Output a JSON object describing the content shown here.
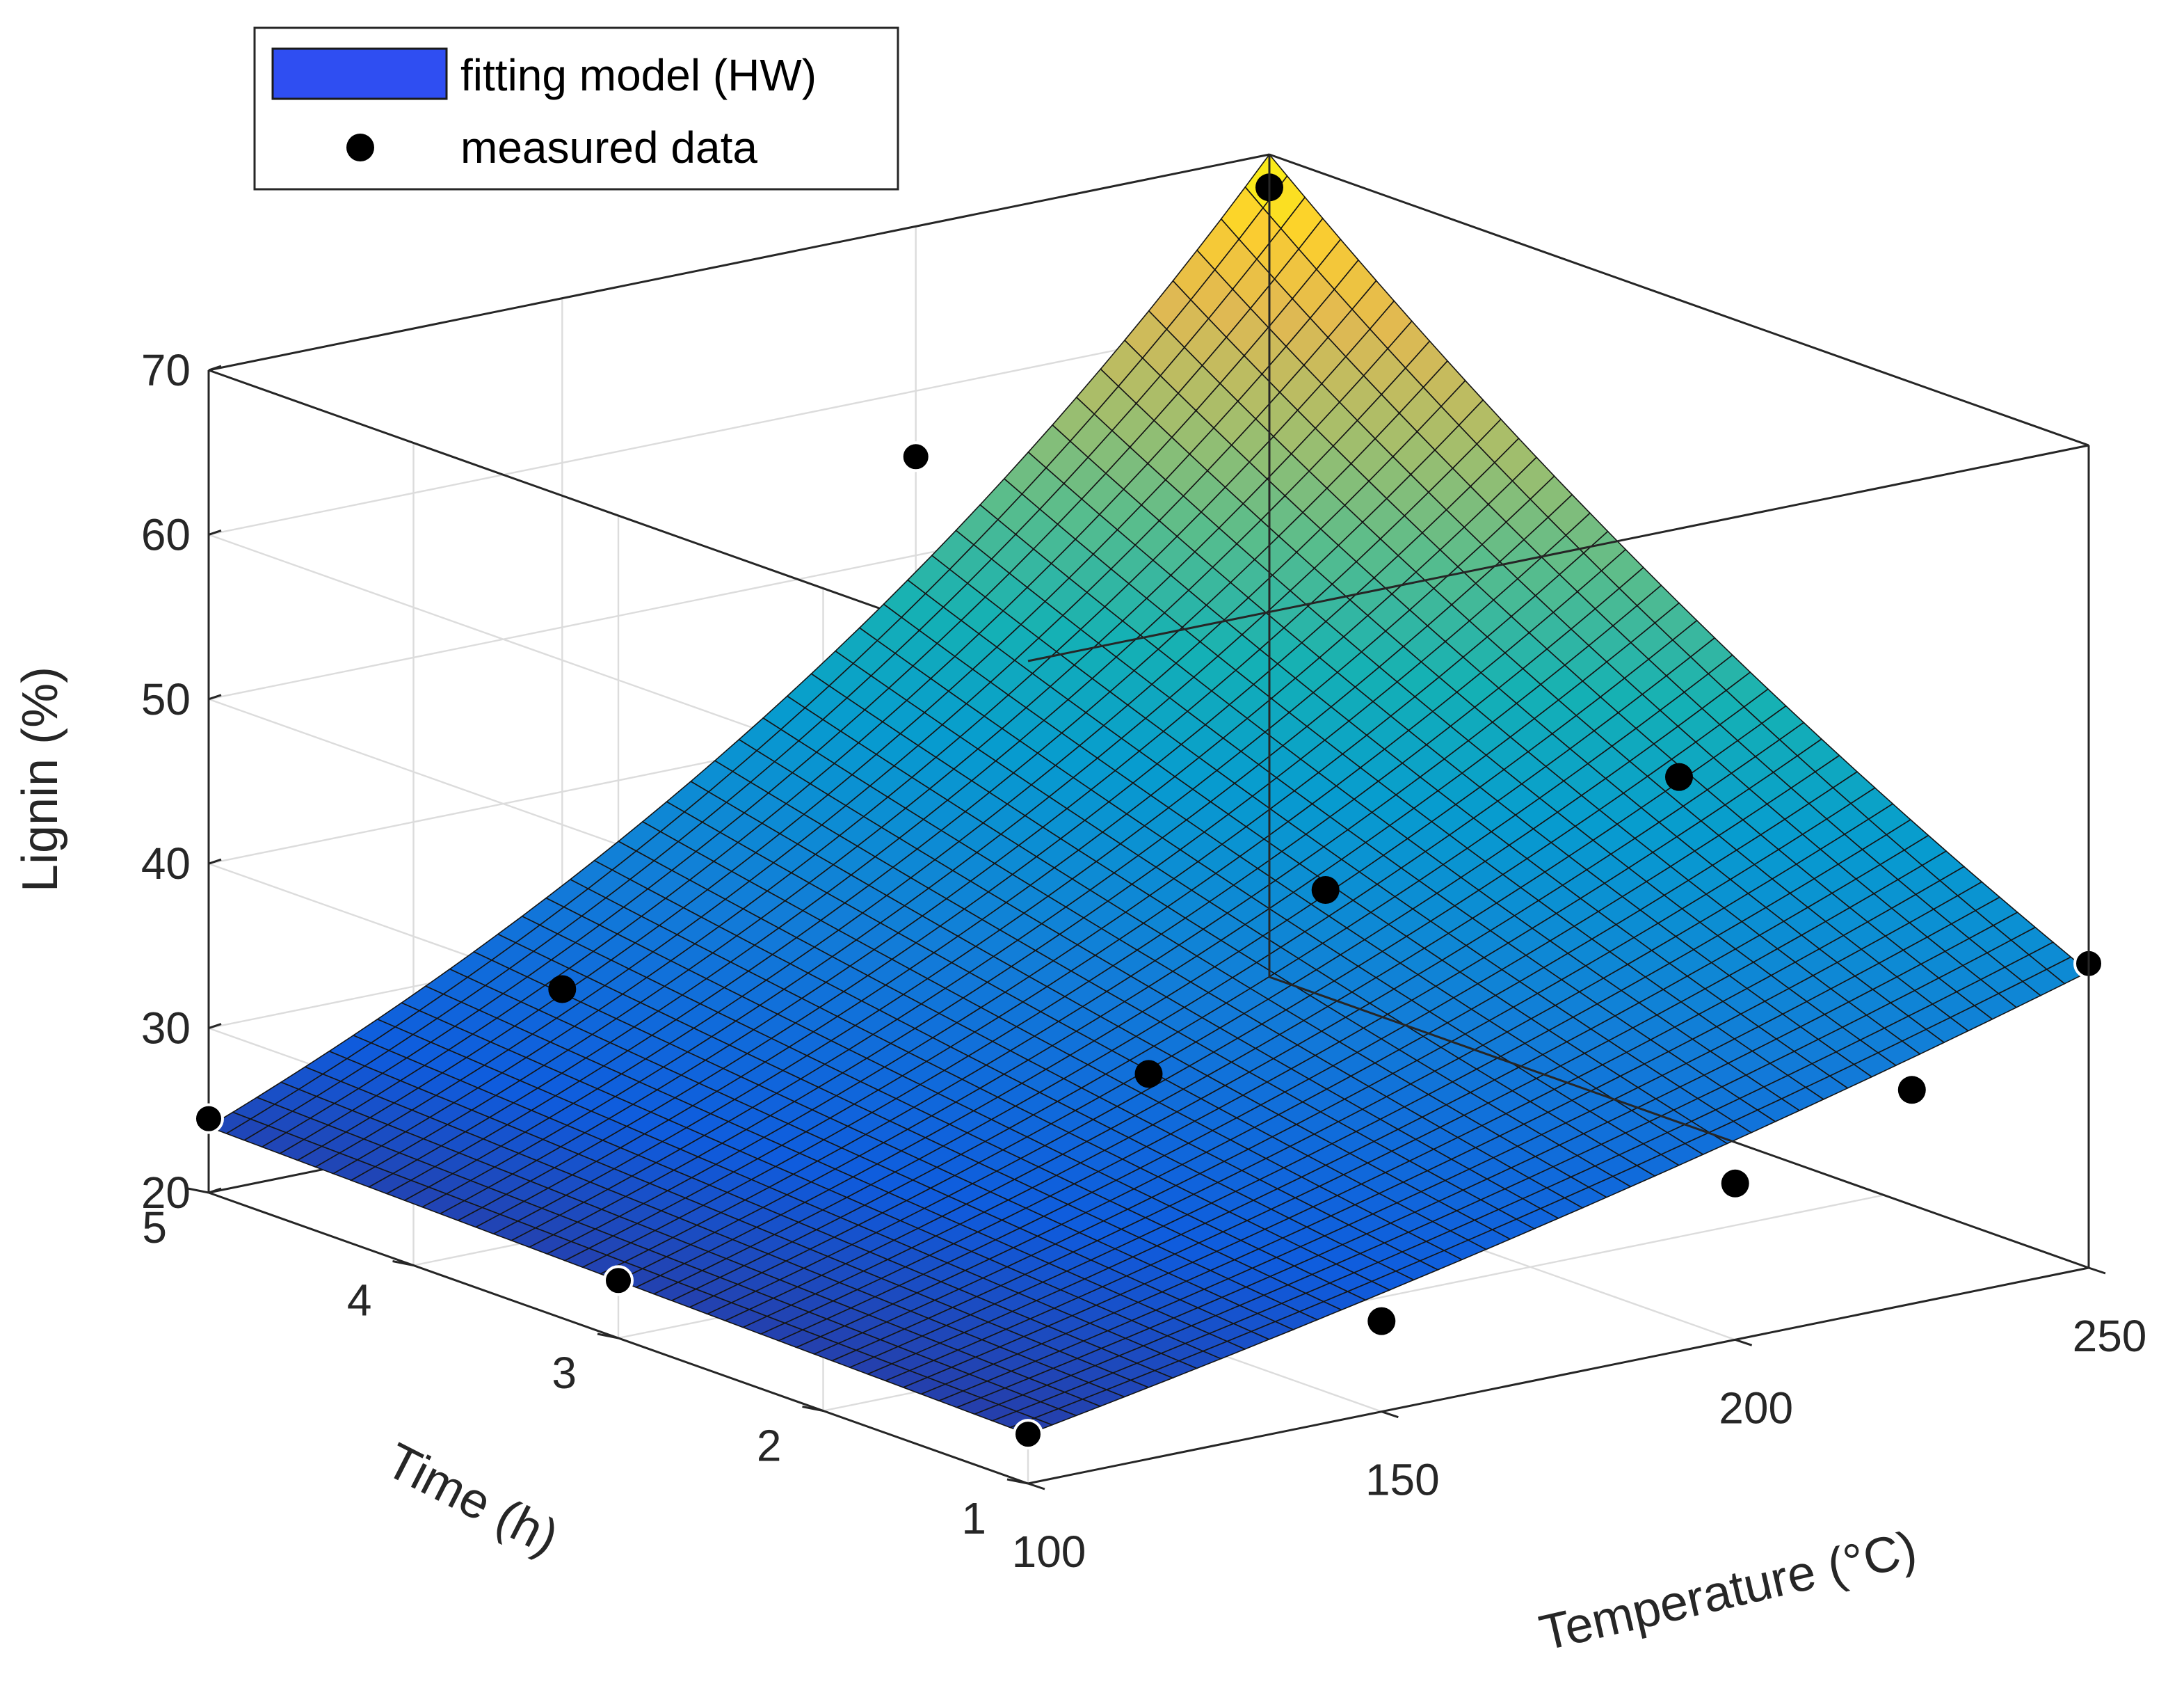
{
  "chart_data": {
    "type": "surface3d",
    "title": "",
    "xlabel": "Temperature (°C)",
    "ylabel": "Time (h)",
    "zlabel": "Lignin (%)",
    "xlim": [
      100,
      250
    ],
    "ylim": [
      1,
      5
    ],
    "zlim": [
      20,
      70
    ],
    "xticks": [
      "100",
      "150",
      "200",
      "250"
    ],
    "yticks": [
      "1",
      "2",
      "3",
      "4",
      "5"
    ],
    "zticks": [
      "20",
      "30",
      "40",
      "50",
      "60",
      "70"
    ],
    "grid": true,
    "colormap": "parula",
    "legend": {
      "placement": "top-left",
      "entries": [
        "fitting model (HW)",
        "measured data"
      ]
    },
    "surface": {
      "name": "fitting model (HW)",
      "color": "#2f4ef2",
      "model": "exponential",
      "corners": [
        {
          "temperature": 100,
          "time": 1,
          "lignin": 23
        },
        {
          "temperature": 100,
          "time": 5,
          "lignin": 24
        },
        {
          "temperature": 250,
          "time": 1,
          "lignin": 38
        },
        {
          "temperature": 250,
          "time": 5,
          "lignin": 70
        }
      ]
    },
    "measured": {
      "name": "measured data",
      "color": "#000000",
      "points": [
        {
          "temperature": 100,
          "time": 1,
          "lignin": 23
        },
        {
          "temperature": 100,
          "time": 3,
          "lignin": 23.5
        },
        {
          "temperature": 100,
          "time": 5,
          "lignin": 24.5
        },
        {
          "temperature": 150,
          "time": 1,
          "lignin": 25.5
        },
        {
          "temperature": 150,
          "time": 5,
          "lignin": 28
        },
        {
          "temperature": 175,
          "time": 3,
          "lignin": 29.5
        },
        {
          "temperature": 200,
          "time": 1,
          "lignin": 29.5
        },
        {
          "temperature": 200,
          "time": 3,
          "lignin": 38.5
        },
        {
          "temperature": 200,
          "time": 5,
          "lignin": 56
        },
        {
          "temperature": 225,
          "time": 1,
          "lignin": 33
        },
        {
          "temperature": 250,
          "time": 1,
          "lignin": 38.5
        },
        {
          "temperature": 250,
          "time": 3,
          "lignin": 41
        },
        {
          "temperature": 250,
          "time": 5,
          "lignin": 68
        }
      ]
    }
  }
}
